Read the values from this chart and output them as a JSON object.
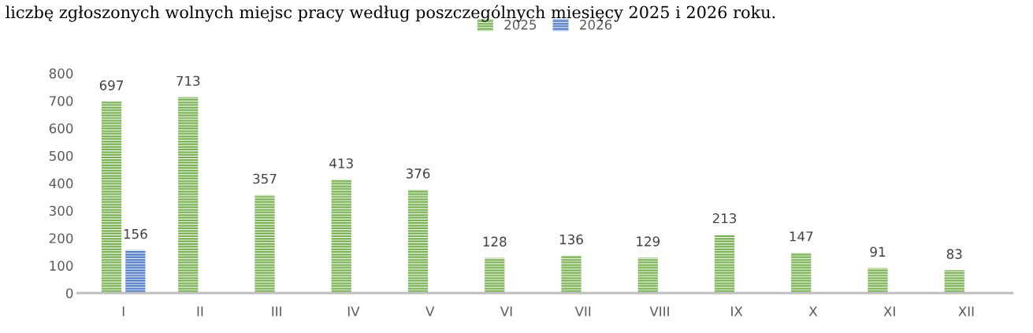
{
  "chart_data": {
    "type": "bar",
    "title": "liczbę zgłoszonych wolnych miejsc pracy według poszczególnych miesięcy 2025 i 2026 roku.",
    "categories": [
      "I",
      "II",
      "III",
      "IV",
      "V",
      "VI",
      "VII",
      "VIII",
      "IX",
      "X",
      "XI",
      "XII"
    ],
    "series": [
      {
        "name": "2025",
        "color": "#70ad47",
        "values": [
          697,
          713,
          357,
          413,
          376,
          128,
          136,
          129,
          213,
          147,
          91,
          83
        ]
      },
      {
        "name": "2026",
        "color": "#4472c4",
        "values": [
          156,
          null,
          null,
          null,
          null,
          null,
          null,
          null,
          null,
          null,
          null,
          null
        ]
      }
    ],
    "ylim": [
      0,
      800
    ],
    "yticks": [
      0,
      100,
      200,
      300,
      400,
      500,
      600,
      700,
      800
    ],
    "grid": false,
    "legend": "top",
    "data_labels": true
  }
}
